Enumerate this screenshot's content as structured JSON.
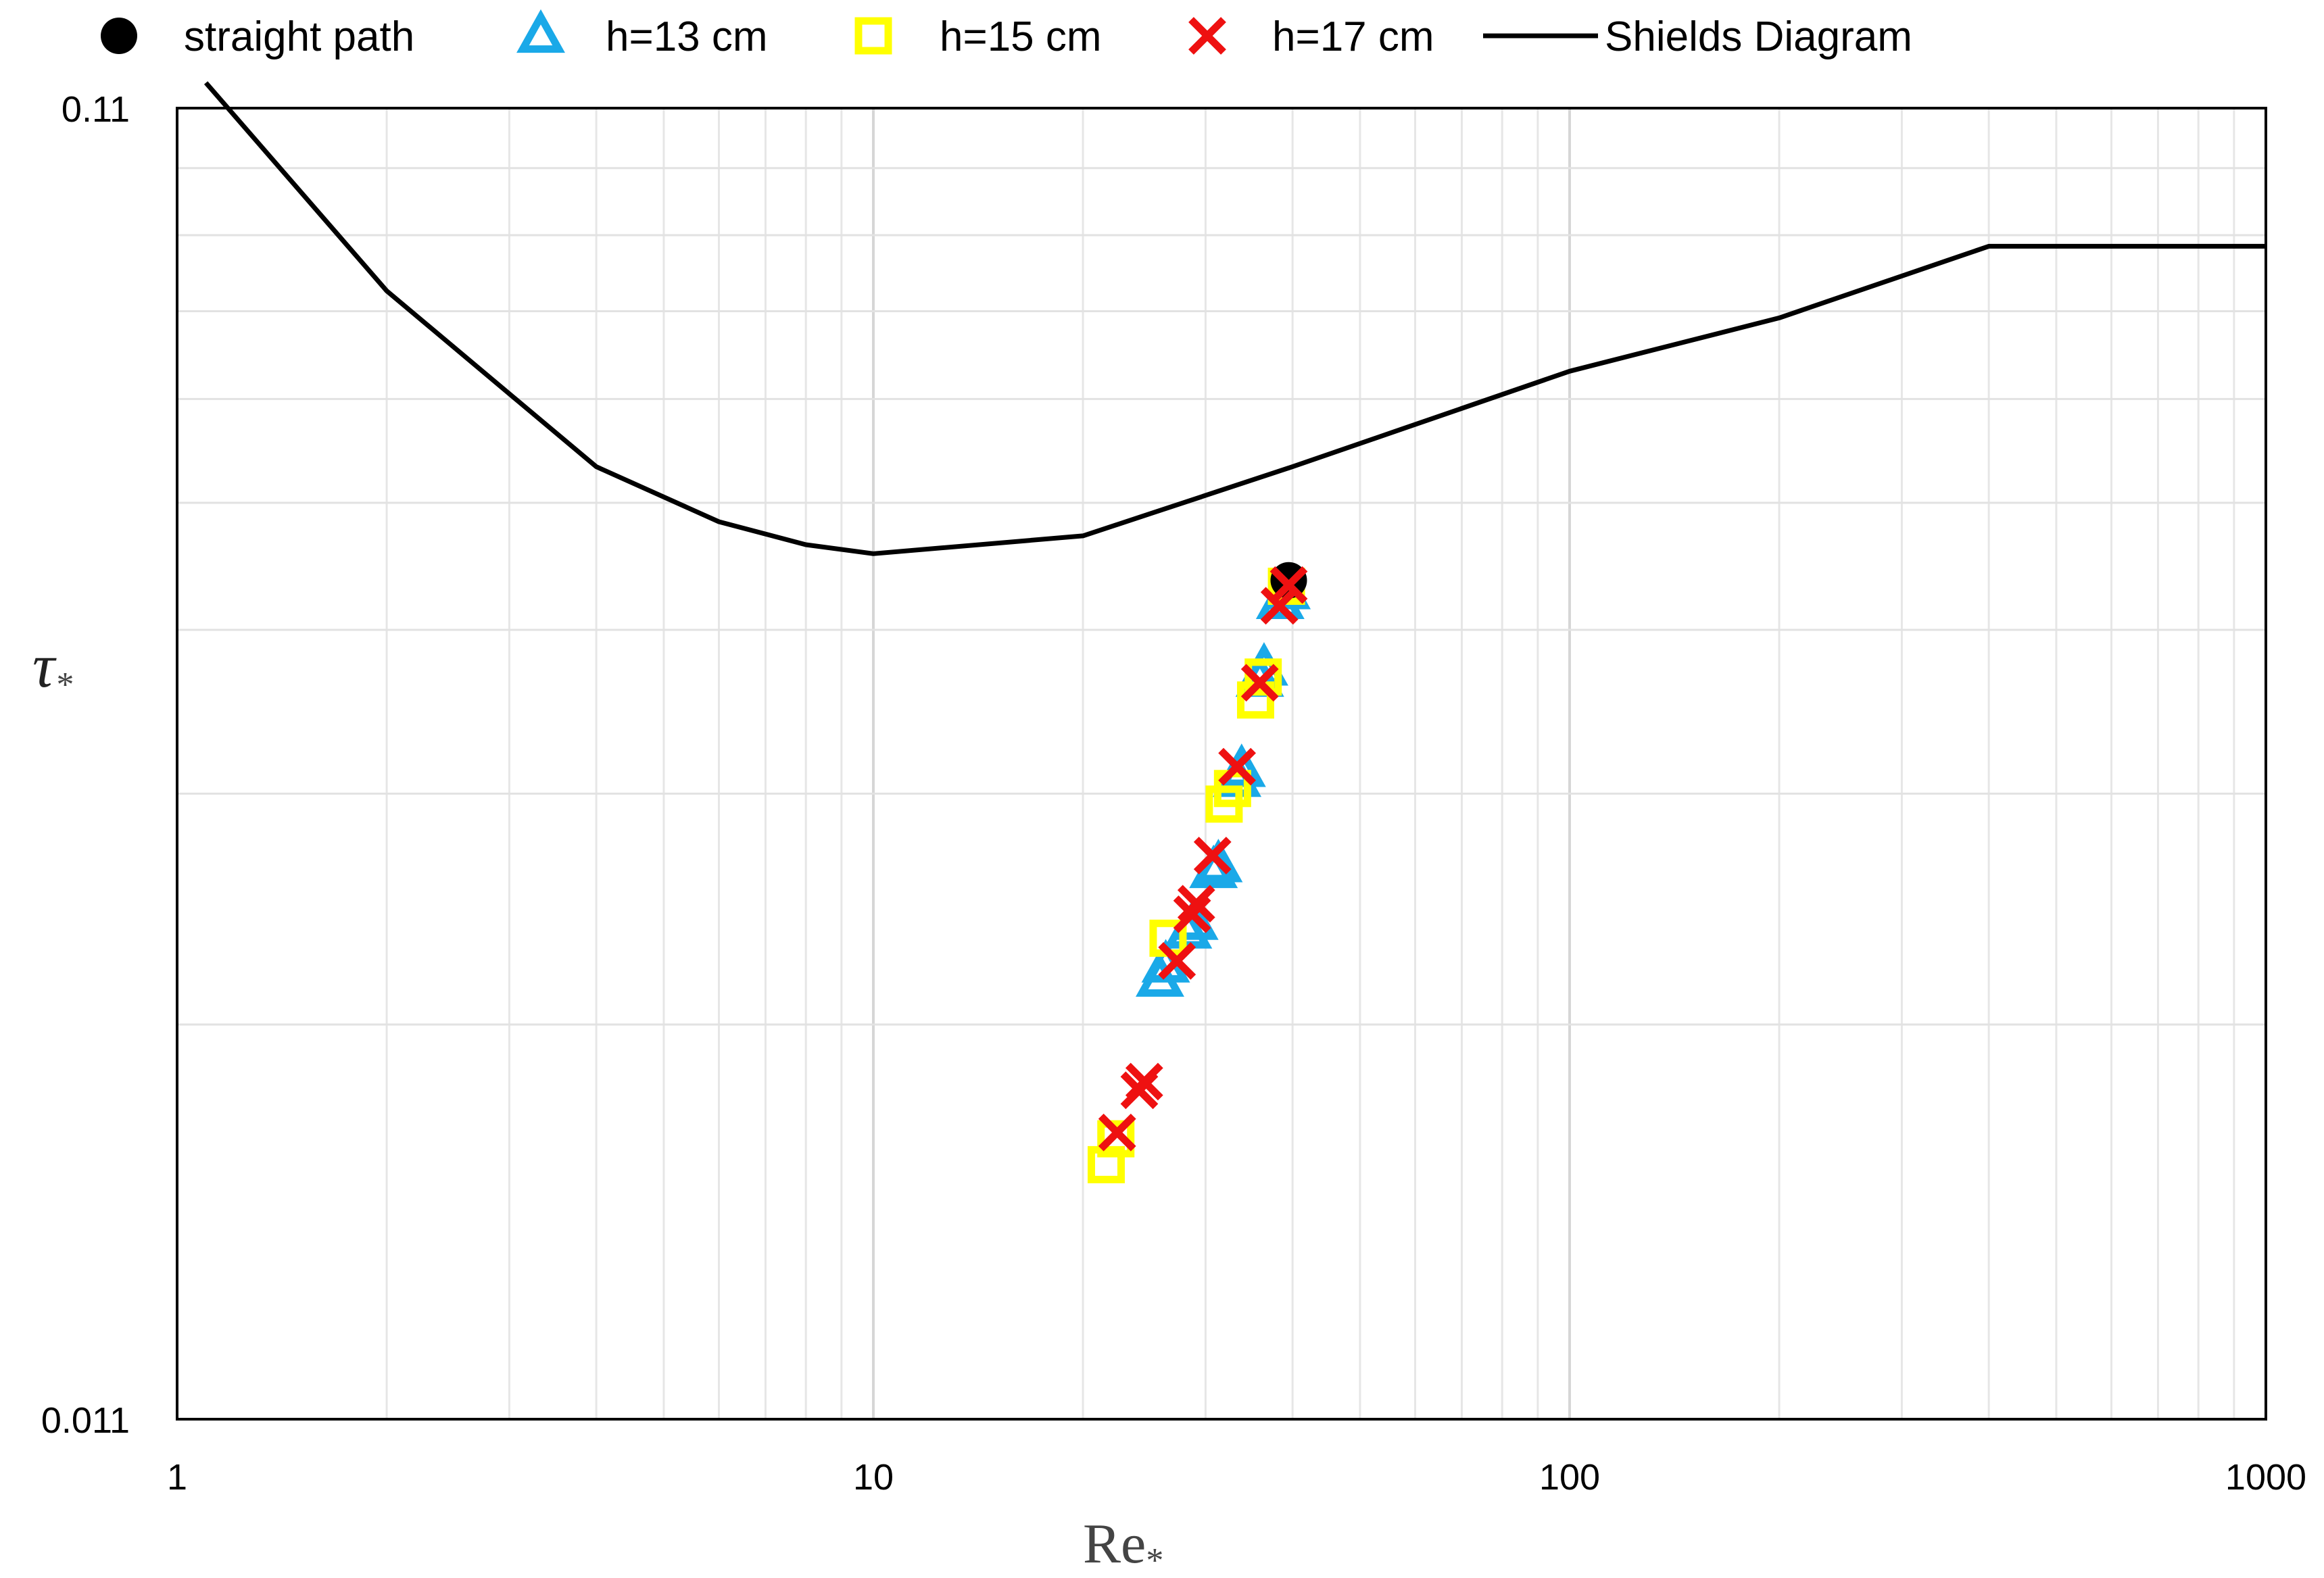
{
  "chart_data": {
    "type": "scatter",
    "title": "",
    "xlabel": "Re",
    "xlabel_subscript": "*",
    "ylabel": "τ",
    "ylabel_subscript": "*",
    "x_scale": "log",
    "y_scale": "log",
    "xlim": [
      1,
      1000
    ],
    "ylim": [
      0.011,
      0.11
    ],
    "x_ticks": [
      1,
      10,
      100,
      1000
    ],
    "x_tick_labels": [
      "1",
      "10",
      "100",
      "1000"
    ],
    "y_ticks": [
      0.011,
      0.11
    ],
    "y_tick_labels": [
      "0.011",
      "0.11"
    ],
    "grid": true,
    "legend_position": "top",
    "series": [
      {
        "name": "straight path",
        "marker": "circle",
        "color": "#000000",
        "x": [
          39.5
        ],
        "y": [
          0.048
        ]
      },
      {
        "name": "h=13 cm",
        "marker": "triangle",
        "color": "#1aa9e8",
        "x": [
          25.8,
          26.3,
          28.3,
          28.9,
          30.8,
          31.3,
          33.3,
          33.8,
          35.9,
          36.4,
          38.4,
          39.2
        ],
        "y": [
          0.0238,
          0.0244,
          0.0259,
          0.0263,
          0.0288,
          0.0291,
          0.0338,
          0.0344,
          0.0403,
          0.0411,
          0.0462,
          0.047
        ]
      },
      {
        "name": "h=15 cm",
        "marker": "square",
        "color": "#ffff00",
        "x": [
          21.6,
          22.3,
          26.5,
          31.9,
          32.8,
          35.4,
          36.3,
          39.2
        ],
        "y": [
          0.0172,
          0.018,
          0.0256,
          0.0324,
          0.0333,
          0.0389,
          0.0405,
          0.0475
        ]
      },
      {
        "name": "h=17 cm",
        "marker": "x",
        "color": "#ee1111",
        "x": [
          22.4,
          24.1,
          24.5,
          27.3,
          28.7,
          29.1,
          30.7,
          33.3,
          35.9,
          38.3,
          39.5
        ],
        "y": [
          0.0182,
          0.0196,
          0.0199,
          0.0246,
          0.0267,
          0.0272,
          0.0296,
          0.0346,
          0.0401,
          0.0459,
          0.0476
        ]
      },
      {
        "name": "Shields Diagram",
        "marker": "line",
        "color": "#000000",
        "x": [
          1.1,
          2,
          4,
          6,
          8,
          10,
          20,
          40,
          100,
          200,
          400,
          1000
        ],
        "y": [
          0.115,
          0.0798,
          0.0586,
          0.0532,
          0.0511,
          0.0503,
          0.0519,
          0.0586,
          0.0693,
          0.0761,
          0.0863,
          0.0863
        ]
      }
    ]
  }
}
